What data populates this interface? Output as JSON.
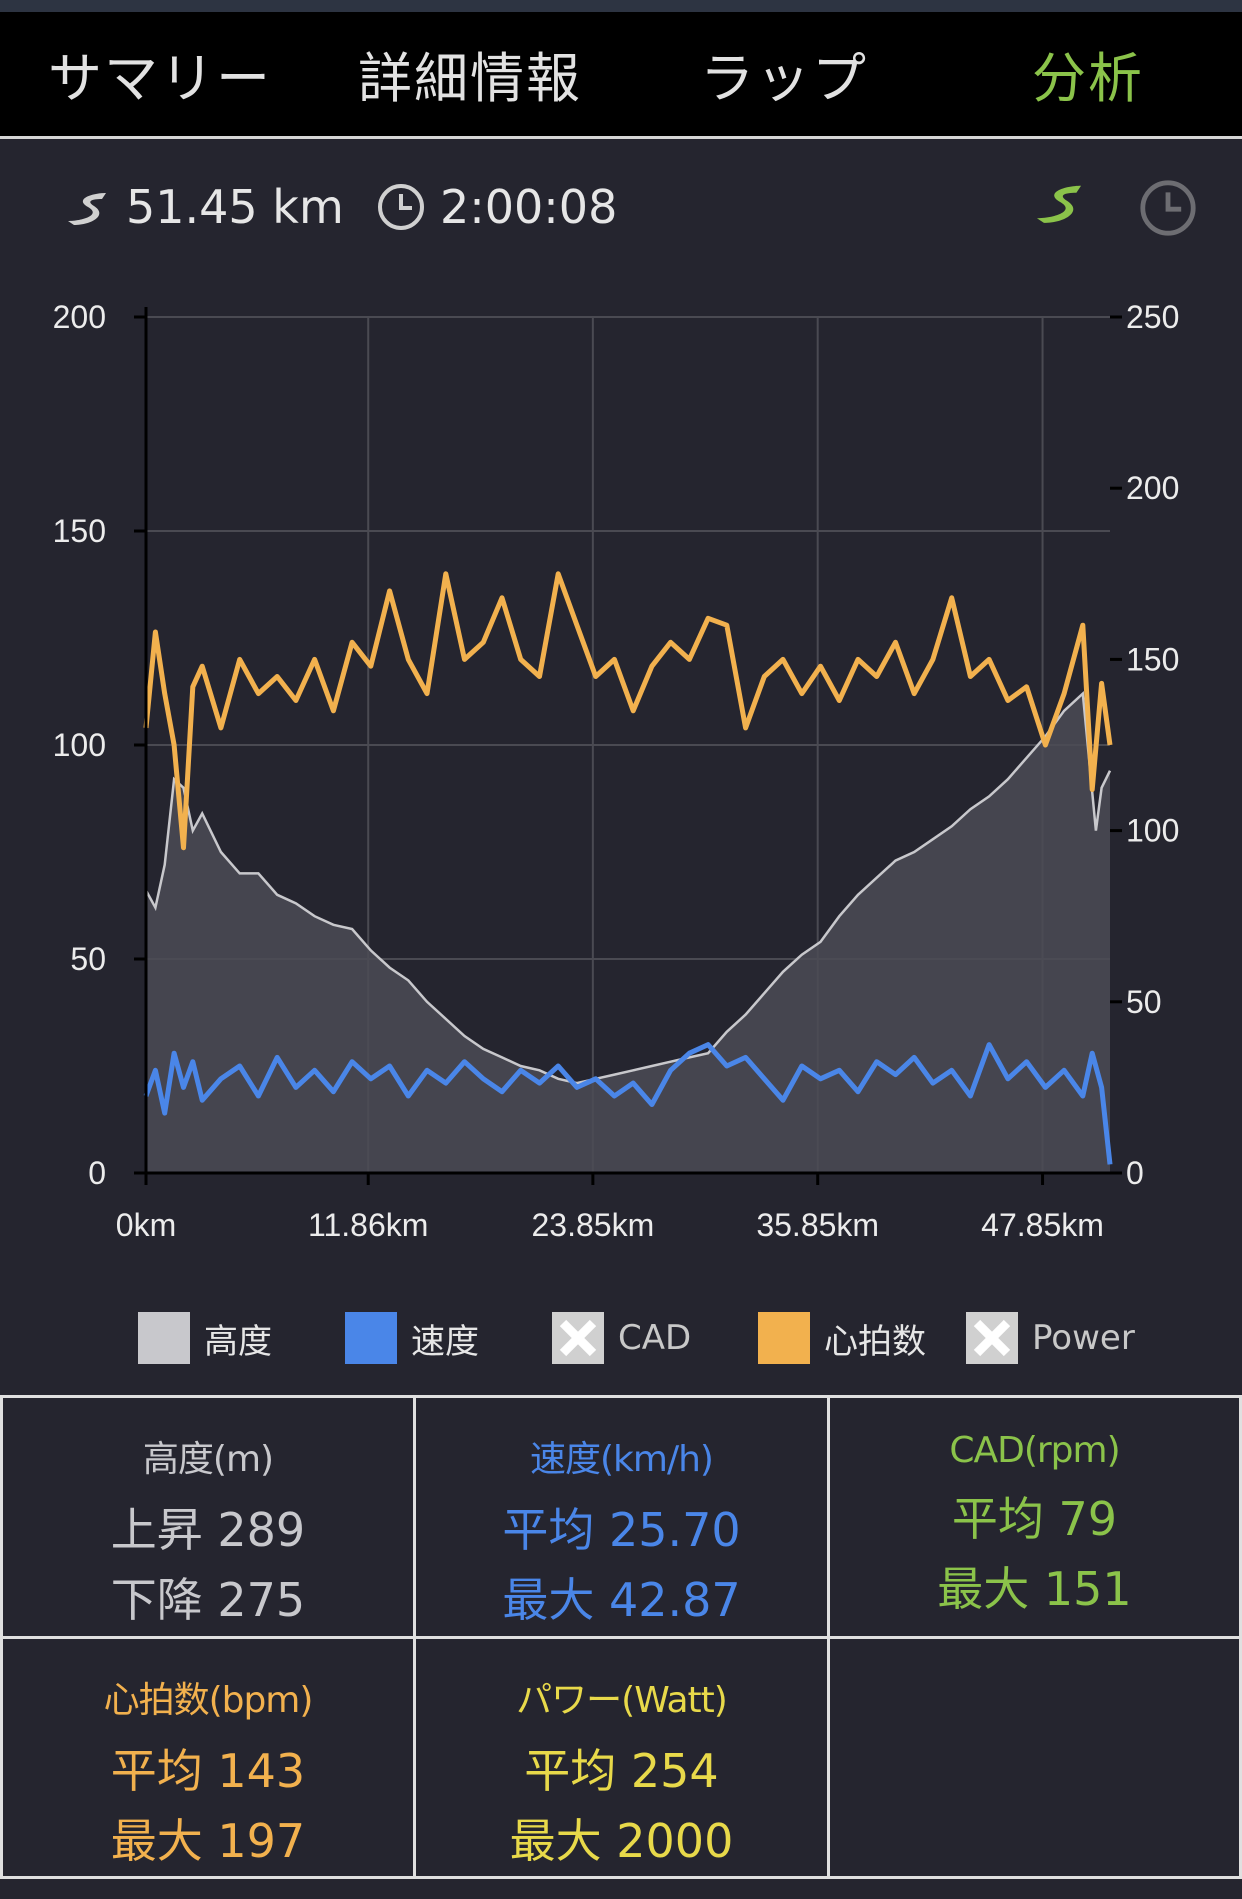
{
  "tabs": [
    {
      "label": "サマリー",
      "active": false
    },
    {
      "label": "詳細情報",
      "active": false
    },
    {
      "label": "ラップ",
      "active": false
    },
    {
      "label": "分析",
      "active": true
    }
  ],
  "summary": {
    "distance": "51.45 km",
    "duration": "2:00:08"
  },
  "colors": {
    "accent": "#8bc34a",
    "altitude": "#c8c8cc",
    "speed": "#4a86e8",
    "heart_rate": "#f2b14e",
    "cadence": "#8bc34a",
    "power": "#e8d94a"
  },
  "chart_data": {
    "type": "line",
    "x_axis": {
      "unit": "km",
      "range": [
        0,
        51.45
      ],
      "ticks": [
        0,
        11.86,
        23.85,
        35.85,
        47.85
      ],
      "tick_labels": [
        "0km",
        "11.86km",
        "23.85km",
        "35.85km",
        "47.85km"
      ]
    },
    "y_left": {
      "range": [
        0,
        200
      ],
      "ticks": [
        0,
        50,
        100,
        150,
        200
      ]
    },
    "y_right": {
      "range": [
        0,
        250
      ],
      "ticks": [
        0,
        50,
        100,
        150,
        200,
        250
      ]
    },
    "grid": true,
    "series": [
      {
        "name": "高度",
        "axis": "left",
        "style": "area",
        "x": [
          0,
          0.5,
          1,
          1.5,
          2,
          2.5,
          3,
          4,
          5,
          6,
          7,
          8,
          9,
          10,
          11,
          12,
          13,
          14,
          15,
          16,
          17,
          18,
          19,
          20,
          21,
          22,
          23,
          24,
          25,
          26,
          27,
          28,
          29,
          30,
          31,
          32,
          33,
          34,
          35,
          36,
          37,
          38,
          39,
          40,
          41,
          42,
          43,
          44,
          45,
          46,
          47,
          48,
          49,
          50,
          50.7,
          51,
          51.45
        ],
        "values": [
          66,
          62,
          72,
          92,
          90,
          80,
          84,
          75,
          70,
          70,
          65,
          63,
          60,
          58,
          57,
          52,
          48,
          45,
          40,
          36,
          32,
          29,
          27,
          25,
          24,
          22,
          21,
          22,
          23,
          24,
          25,
          26,
          27,
          28,
          33,
          37,
          42,
          47,
          51,
          54,
          60,
          65,
          69,
          73,
          75,
          78,
          81,
          85,
          88,
          92,
          97,
          102,
          108,
          112,
          80,
          90,
          94
        ]
      },
      {
        "name": "速度",
        "axis": "left",
        "style": "line",
        "x": [
          0,
          0.5,
          1,
          1.5,
          2,
          2.5,
          3,
          4,
          5,
          6,
          7,
          8,
          9,
          10,
          11,
          12,
          13,
          14,
          15,
          16,
          17,
          18,
          19,
          20,
          21,
          22,
          23,
          24,
          25,
          26,
          27,
          28,
          29,
          30,
          31,
          32,
          33,
          34,
          35,
          36,
          37,
          38,
          39,
          40,
          41,
          42,
          43,
          44,
          45,
          46,
          47,
          48,
          49,
          50,
          50.5,
          51,
          51.45
        ],
        "values": [
          18,
          24,
          14,
          28,
          20,
          26,
          17,
          22,
          25,
          18,
          27,
          20,
          24,
          19,
          26,
          22,
          25,
          18,
          24,
          21,
          26,
          22,
          19,
          24,
          21,
          25,
          20,
          22,
          18,
          21,
          16,
          24,
          28,
          30,
          25,
          27,
          22,
          17,
          25,
          22,
          24,
          19,
          26,
          23,
          27,
          21,
          24,
          18,
          30,
          22,
          26,
          20,
          24,
          18,
          28,
          20,
          2
        ]
      },
      {
        "name": "心拍数",
        "axis": "right",
        "style": "line",
        "x": [
          0,
          0.5,
          1,
          1.5,
          2,
          2.5,
          3,
          4,
          5,
          6,
          7,
          8,
          9,
          10,
          11,
          12,
          13,
          14,
          15,
          16,
          17,
          18,
          19,
          20,
          21,
          22,
          23,
          24,
          25,
          26,
          27,
          28,
          29,
          30,
          31,
          32,
          33,
          34,
          35,
          36,
          37,
          38,
          39,
          40,
          41,
          42,
          43,
          44,
          45,
          46,
          47,
          48,
          49,
          50,
          50.5,
          51,
          51.45
        ],
        "values": [
          130,
          158,
          140,
          125,
          95,
          142,
          148,
          130,
          150,
          140,
          145,
          138,
          150,
          135,
          155,
          148,
          170,
          150,
          140,
          175,
          150,
          155,
          168,
          150,
          145,
          175,
          160,
          145,
          150,
          135,
          148,
          155,
          150,
          162,
          160,
          130,
          145,
          150,
          140,
          148,
          138,
          150,
          145,
          155,
          140,
          150,
          168,
          145,
          150,
          138,
          142,
          125,
          140,
          160,
          112,
          143,
          125
        ]
      }
    ]
  },
  "legend": [
    {
      "label": "高度",
      "kind": "color",
      "color": "#c8c8cc"
    },
    {
      "label": "速度",
      "kind": "color",
      "color": "#4a86e8"
    },
    {
      "label": "CAD",
      "kind": "disabled"
    },
    {
      "label": "心拍数",
      "kind": "color",
      "color": "#f2b14e"
    },
    {
      "label": "Power",
      "kind": "disabled"
    }
  ],
  "stats": [
    {
      "title": "高度(m)",
      "line1": "上昇 289",
      "line2": "下降 275",
      "color": "#c8c8cc"
    },
    {
      "title": "速度(km/h)",
      "line1": "平均 25.70",
      "line2": "最大 42.87",
      "color": "#4a86e8"
    },
    {
      "title": "CAD(rpm)",
      "line1": "平均 79",
      "line2": "最大 151",
      "color": "#8bc34a"
    },
    {
      "title": "心拍数(bpm)",
      "line1": "平均 143",
      "line2": "最大 197",
      "color": "#f2b14e"
    },
    {
      "title": "パワー(Watt)",
      "line1": "平均 254",
      "line2": "最大 2000",
      "color": "#e8d94a"
    }
  ]
}
